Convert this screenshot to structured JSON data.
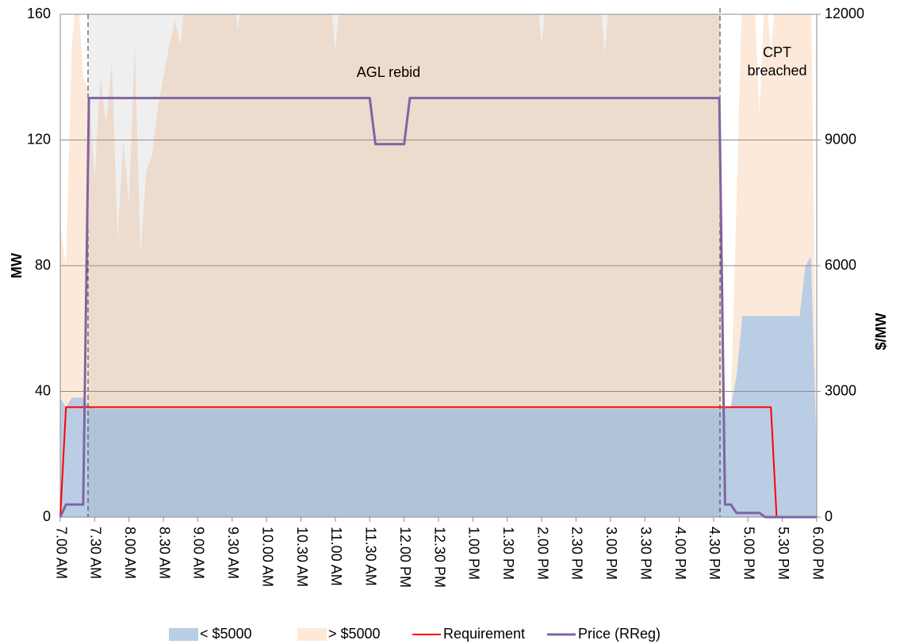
{
  "chart_data": {
    "type": "line",
    "y_label": "MW",
    "y2_label": "$/MW",
    "annotations": [
      {
        "text": [
          "AGL rebid"
        ]
      },
      {
        "text": [
          "CPT",
          "breached"
        ]
      }
    ],
    "grid": true,
    "legend": "bottom",
    "ylim": [
      0,
      160
    ],
    "yticks": [
      0,
      40,
      80,
      120,
      160
    ],
    "y2lim": [
      0,
      12000
    ],
    "y2ticks": [
      0,
      3000,
      6000,
      9000,
      12000
    ],
    "categories": [
      "7.00 AM",
      null,
      null,
      null,
      null,
      null,
      "7.30 AM",
      null,
      null,
      null,
      null,
      null,
      "8.00 AM",
      null,
      null,
      null,
      null,
      null,
      "8.30 AM",
      null,
      null,
      null,
      null,
      null,
      "9.00 AM",
      null,
      null,
      null,
      null,
      null,
      "9.30 AM",
      null,
      null,
      null,
      null,
      null,
      "10.00 AM",
      null,
      null,
      null,
      null,
      null,
      "10.30 AM",
      null,
      null,
      null,
      null,
      null,
      "11.00 AM",
      null,
      null,
      null,
      null,
      null,
      "11.30 AM",
      null,
      null,
      null,
      null,
      null,
      "12.00 PM",
      null,
      null,
      null,
      null,
      null,
      "12.30 PM",
      null,
      null,
      null,
      null,
      null,
      "1.00 PM",
      null,
      null,
      null,
      null,
      null,
      "1.30 PM",
      null,
      null,
      null,
      null,
      null,
      "2.00 PM",
      null,
      null,
      null,
      null,
      null,
      "2.30 PM",
      null,
      null,
      null,
      null,
      null,
      "3.00 PM",
      null,
      null,
      null,
      null,
      null,
      "3.30 PM",
      null,
      null,
      null,
      null,
      null,
      "4.00 PM",
      null,
      null,
      null,
      null,
      null,
      "4.30 PM",
      null,
      null,
      null,
      null,
      null,
      "5.00 PM",
      null,
      null,
      null,
      null,
      null,
      "5.30 PM",
      null,
      null,
      null,
      null,
      null,
      "6.00 PM"
    ],
    "series": [
      {
        "name": "< $5000",
        "type": "area",
        "stack": true,
        "color": "#b9cde5",
        "values": [
          38,
          35,
          38,
          38,
          38,
          35,
          34.5,
          34.5,
          34.5,
          34.5,
          34.5,
          34.5,
          34.5,
          34.5,
          34.5,
          34.5,
          34.5,
          34.5,
          34.5,
          34.5,
          34.5,
          34.5,
          34.5,
          34.5,
          34.5,
          34.5,
          34.5,
          34.5,
          34.5,
          34.5,
          34.5,
          34.5,
          34.5,
          34.5,
          34.5,
          34.5,
          34.5,
          34.5,
          34.5,
          34.5,
          34.5,
          34.5,
          34.5,
          34.5,
          34.5,
          34.5,
          34.5,
          34.5,
          34.5,
          34.5,
          34.5,
          34.5,
          34.5,
          34.5,
          34.5,
          34.5,
          34.5,
          34.5,
          34.5,
          34.5,
          34.5,
          34.5,
          34.5,
          34.5,
          34.5,
          34.5,
          34.5,
          34.5,
          34.5,
          34.5,
          34.5,
          34.5,
          34.5,
          34.5,
          34.5,
          34.5,
          34.5,
          34.5,
          34.5,
          34.5,
          34.5,
          34.5,
          34.5,
          34.5,
          34.5,
          34.5,
          34.5,
          34.5,
          34.5,
          34.5,
          34.5,
          34.5,
          34.5,
          34.5,
          34.5,
          34.5,
          34.5,
          34.5,
          34.5,
          34.5,
          34.5,
          34.5,
          34.5,
          34.5,
          34.5,
          34.5,
          34.5,
          34.5,
          34.5,
          34.5,
          34.5,
          34.5,
          34.5,
          34.5,
          34.5,
          34.5,
          35,
          35,
          45,
          64,
          64,
          64,
          64,
          64,
          64,
          64,
          64,
          64,
          64,
          64,
          80,
          83,
          20
        ]
      },
      {
        "name": "> $5000",
        "type": "area",
        "stack": true,
        "color": "#fde9d9",
        "values": [
          55,
          45,
          112,
          132,
          102,
          100,
          73.5,
          105.5,
          90.5,
          110.5,
          53.5,
          85.5,
          65.5,
          115.5,
          49.5,
          75.5,
          80.5,
          95.5,
          105.5,
          115.5,
          123.5,
          115.5,
          135.5,
          135.5,
          135.5,
          135.5,
          135.5,
          135.5,
          135.5,
          135.5,
          135.5,
          120.5,
          135.5,
          135.5,
          135.5,
          135.5,
          135.5,
          135.5,
          135.5,
          135.5,
          135.5,
          135.5,
          135.5,
          135.5,
          135.5,
          135.5,
          135.5,
          135.5,
          113.5,
          135.5,
          135.5,
          135.5,
          135.5,
          135.5,
          135.5,
          135.5,
          135.5,
          135.5,
          135.5,
          135.5,
          135.5,
          135.5,
          135.5,
          135.5,
          135.5,
          135.5,
          135.5,
          135.5,
          135.5,
          135.5,
          135.5,
          135.5,
          135.5,
          135.5,
          135.5,
          135.5,
          135.5,
          135.5,
          135.5,
          135.5,
          135.5,
          135.5,
          135.5,
          135.5,
          115.5,
          135.5,
          135.5,
          135.5,
          135.5,
          135.5,
          135.5,
          135.5,
          135.5,
          135.5,
          135.5,
          112.5,
          135.5,
          135.5,
          135.5,
          135.5,
          135.5,
          135.5,
          135.5,
          135.5,
          135.5,
          135.5,
          135.5,
          135.5,
          135.5,
          135.5,
          135.5,
          135.5,
          135.5,
          135.5,
          135.5,
          135.5,
          0,
          0,
          55,
          106,
          106,
          106,
          64,
          106,
          84,
          106,
          106,
          106,
          106,
          106,
          90,
          87,
          0
        ]
      },
      {
        "name": "Requirement",
        "type": "line",
        "color": "#ff0000",
        "values": [
          0,
          35,
          35,
          35,
          35,
          35,
          35,
          35,
          35,
          35,
          35,
          35,
          35,
          35,
          35,
          35,
          35,
          35,
          35,
          35,
          35,
          35,
          35,
          35,
          35,
          35,
          35,
          35,
          35,
          35,
          35,
          35,
          35,
          35,
          35,
          35,
          35,
          35,
          35,
          35,
          35,
          35,
          35,
          35,
          35,
          35,
          35,
          35,
          35,
          35,
          35,
          35,
          35,
          35,
          35,
          35,
          35,
          35,
          35,
          35,
          35,
          35,
          35,
          35,
          35,
          35,
          35,
          35,
          35,
          35,
          35,
          35,
          35,
          35,
          35,
          35,
          35,
          35,
          35,
          35,
          35,
          35,
          35,
          35,
          35,
          35,
          35,
          35,
          35,
          35,
          35,
          35,
          35,
          35,
          35,
          35,
          35,
          35,
          35,
          35,
          35,
          35,
          35,
          35,
          35,
          35,
          35,
          35,
          35,
          35,
          35,
          35,
          35,
          35,
          35,
          35,
          35,
          35,
          35,
          35,
          35,
          35,
          35,
          35,
          35,
          0,
          0,
          0,
          0,
          0,
          0,
          0,
          0
        ]
      },
      {
        "name": "Price (RReg)",
        "type": "line",
        "axis": "y2",
        "color": "#8064a2",
        "values": [
          0,
          300,
          300,
          300,
          300,
          10000,
          10000,
          10000,
          10000,
          10000,
          10000,
          10000,
          10000,
          10000,
          10000,
          10000,
          10000,
          10000,
          10000,
          10000,
          10000,
          10000,
          10000,
          10000,
          10000,
          10000,
          10000,
          10000,
          10000,
          10000,
          10000,
          10000,
          10000,
          10000,
          10000,
          10000,
          10000,
          10000,
          10000,
          10000,
          10000,
          10000,
          10000,
          10000,
          10000,
          10000,
          10000,
          10000,
          10000,
          10000,
          10000,
          10000,
          10000,
          10000,
          10000,
          8900,
          8900,
          8900,
          8900,
          8900,
          8900,
          10000,
          10000,
          10000,
          10000,
          10000,
          10000,
          10000,
          10000,
          10000,
          10000,
          10000,
          10000,
          10000,
          10000,
          10000,
          10000,
          10000,
          10000,
          10000,
          10000,
          10000,
          10000,
          10000,
          10000,
          10000,
          10000,
          10000,
          10000,
          10000,
          10000,
          10000,
          10000,
          10000,
          10000,
          10000,
          10000,
          10000,
          10000,
          10000,
          10000,
          10000,
          10000,
          10000,
          10000,
          10000,
          10000,
          10000,
          10000,
          10000,
          10000,
          10000,
          10000,
          10000,
          10000,
          10000,
          300,
          300,
          100,
          100,
          100,
          100,
          100,
          0,
          0,
          0,
          0,
          0,
          0,
          0,
          0,
          0,
          0
        ]
      }
    ]
  }
}
